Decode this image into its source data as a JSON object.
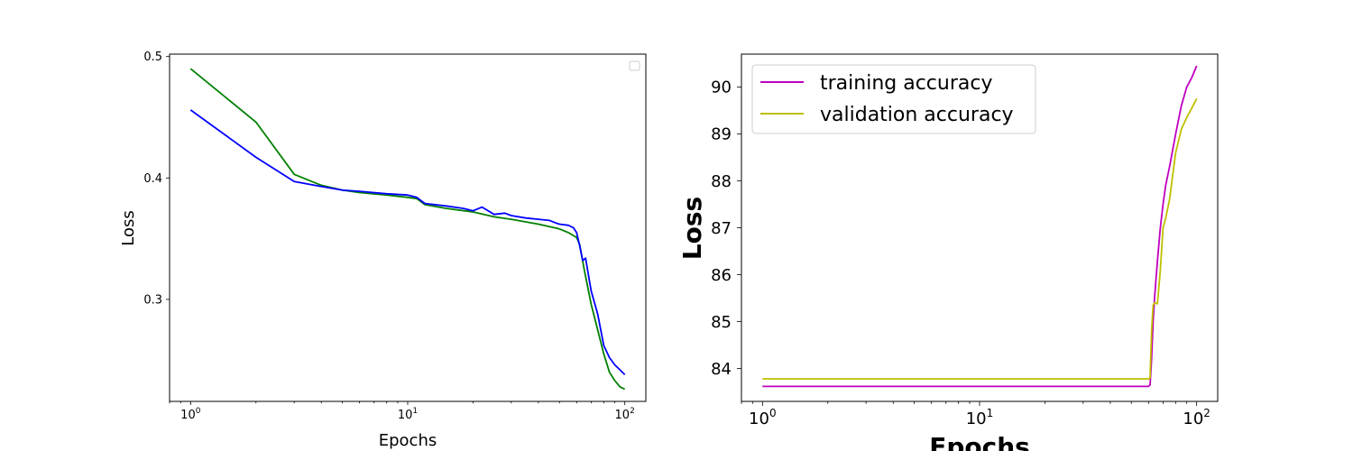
{
  "chart_data": [
    {
      "type": "line",
      "title": "",
      "xlabel": "Epochs",
      "ylabel": "Loss",
      "xscale": "log",
      "xlim": [
        0.8,
        125
      ],
      "ylim": [
        0.216,
        0.502
      ],
      "xticks": [
        1,
        10,
        100
      ],
      "xtick_labels": [
        {
          "base": "10",
          "exp": "0"
        },
        {
          "base": "10",
          "exp": "1"
        },
        {
          "base": "10",
          "exp": "2"
        }
      ],
      "yticks": [
        0.3,
        0.4,
        0.5
      ],
      "ytick_labels": [
        "0.3",
        "0.4",
        "0.5"
      ],
      "legend": {
        "location": "top-right",
        "entries": []
      },
      "grid": false,
      "series": [
        {
          "color": "#008000",
          "x": [
            1,
            2,
            3,
            4,
            5,
            6,
            8,
            10,
            11,
            12,
            15,
            20,
            25,
            30,
            40,
            50,
            55,
            60,
            62,
            65,
            70,
            75,
            80,
            85,
            90,
            95,
            100
          ],
          "y": [
            0.49,
            0.446,
            0.403,
            0.394,
            0.39,
            0.388,
            0.386,
            0.384,
            0.383,
            0.378,
            0.375,
            0.372,
            0.368,
            0.366,
            0.362,
            0.358,
            0.355,
            0.351,
            0.345,
            0.325,
            0.296,
            0.275,
            0.255,
            0.24,
            0.233,
            0.228,
            0.226
          ]
        },
        {
          "color": "#0000ff",
          "x": [
            1,
            2,
            3,
            4,
            5,
            6,
            8,
            10,
            11,
            12,
            15,
            18,
            20,
            22,
            25,
            28,
            30,
            35,
            40,
            45,
            48,
            50,
            55,
            58,
            60,
            62,
            64,
            66,
            68,
            70,
            75,
            80,
            85,
            90,
            95,
            100
          ],
          "y": [
            0.456,
            0.417,
            0.397,
            0.393,
            0.39,
            0.389,
            0.387,
            0.386,
            0.384,
            0.379,
            0.377,
            0.375,
            0.373,
            0.376,
            0.37,
            0.371,
            0.369,
            0.367,
            0.366,
            0.365,
            0.363,
            0.362,
            0.361,
            0.359,
            0.355,
            0.344,
            0.332,
            0.334,
            0.32,
            0.307,
            0.288,
            0.262,
            0.252,
            0.246,
            0.242,
            0.238
          ]
        }
      ]
    },
    {
      "type": "line",
      "title": "",
      "xlabel": "Epochs",
      "ylabel": "Loss",
      "xscale": "log",
      "xlim": [
        0.8,
        125
      ],
      "ylim": [
        83.3,
        90.7
      ],
      "xticks": [
        1,
        10,
        100
      ],
      "xtick_labels": [
        {
          "base": "10",
          "exp": "0"
        },
        {
          "base": "10",
          "exp": "1"
        },
        {
          "base": "10",
          "exp": "2"
        }
      ],
      "yticks": [
        84,
        85,
        86,
        87,
        88,
        89,
        90
      ],
      "ytick_labels": [
        "84",
        "85",
        "86",
        "87",
        "88",
        "89",
        "90"
      ],
      "legend": {
        "location": "top-left",
        "entries": [
          {
            "label": "training accuracy",
            "color": "#bf00bf"
          },
          {
            "label": "validation accuracy",
            "color": "#bfbf00"
          }
        ]
      },
      "grid": false,
      "series": [
        {
          "name": "training accuracy",
          "color": "#bf00bf",
          "x": [
            1,
            60,
            61,
            62,
            63,
            64,
            66,
            68,
            70,
            72,
            75,
            80,
            85,
            90,
            95,
            100
          ],
          "y": [
            83.62,
            83.62,
            83.65,
            84.2,
            85.0,
            85.5,
            86.3,
            87.0,
            87.5,
            87.9,
            88.3,
            89.0,
            89.6,
            90.0,
            90.2,
            90.45
          ]
        },
        {
          "name": "validation accuracy",
          "color": "#bfbf00",
          "x": [
            1,
            60,
            61,
            62,
            63,
            64,
            66,
            68,
            70,
            72,
            75,
            80,
            85,
            90,
            95,
            100
          ],
          "y": [
            83.78,
            83.78,
            83.8,
            84.8,
            85.35,
            85.4,
            85.38,
            86.1,
            87.0,
            87.2,
            87.6,
            88.6,
            89.1,
            89.35,
            89.55,
            89.75
          ]
        }
      ]
    }
  ]
}
